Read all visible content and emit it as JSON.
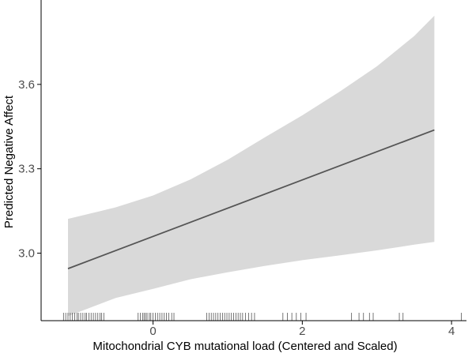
{
  "chart_data": {
    "type": "line",
    "title": "",
    "xlabel": "Mitochondrial CYB mutational load (Centered and Scaled)",
    "ylabel": "Predicted Negative Affect",
    "xlim": [
      -1.5,
      4.2
    ],
    "ylim": [
      2.76,
      3.9
    ],
    "x_ticks": [
      0,
      2,
      4
    ],
    "y_ticks": [
      3.0,
      3.3,
      3.6
    ],
    "x_tick_labels": [
      "0",
      "2",
      "4"
    ],
    "y_tick_labels": [
      "3.0",
      "3.3",
      "3.6"
    ],
    "grid": false,
    "legend": "none",
    "colors": {
      "line": "#555555",
      "band": "#d9d9d9",
      "rug": "#555555",
      "axis": "#000000"
    },
    "series": [
      {
        "x": [
          -1.14,
          3.77
        ],
        "y": [
          2.945,
          3.438
        ],
        "ci_lower": [
          2.776,
          3.04
        ],
        "ci_upper": [
          3.122,
          3.844
        ]
      }
    ],
    "band_points": {
      "x": [
        -1.14,
        -0.5,
        0.0,
        0.5,
        1.0,
        1.5,
        2.0,
        2.5,
        3.0,
        3.5,
        3.77
      ],
      "lower": [
        2.776,
        2.841,
        2.873,
        2.907,
        2.932,
        2.955,
        2.975,
        2.992,
        3.01,
        3.03,
        3.04
      ],
      "upper": [
        3.122,
        3.163,
        3.205,
        3.262,
        3.332,
        3.412,
        3.49,
        3.574,
        3.664,
        3.772,
        3.844
      ]
    },
    "rug": [
      -1.2,
      -1.17,
      -1.14,
      -1.11,
      -1.08,
      -1.05,
      -1.02,
      -1.0,
      -0.97,
      -0.94,
      -0.91,
      -0.89,
      -0.86,
      -0.83,
      -0.8,
      -0.77,
      -0.74,
      -0.71,
      -0.69,
      -0.66,
      -0.2,
      -0.17,
      -0.14,
      -0.12,
      -0.1,
      -0.08,
      -0.05,
      -0.03,
      0.0,
      0.03,
      0.06,
      0.09,
      0.12,
      0.15,
      0.18,
      0.21,
      0.25,
      0.28,
      0.72,
      0.75,
      0.78,
      0.81,
      0.84,
      0.87,
      0.9,
      0.93,
      0.96,
      0.99,
      1.02,
      1.05,
      1.08,
      1.11,
      1.14,
      1.17,
      1.2,
      1.24,
      1.28,
      1.32,
      1.36,
      1.74,
      1.8,
      1.86,
      1.92,
      1.98,
      2.05,
      2.66,
      2.76,
      2.82,
      2.9,
      2.95,
      3.3,
      3.35,
      4.13
    ]
  }
}
